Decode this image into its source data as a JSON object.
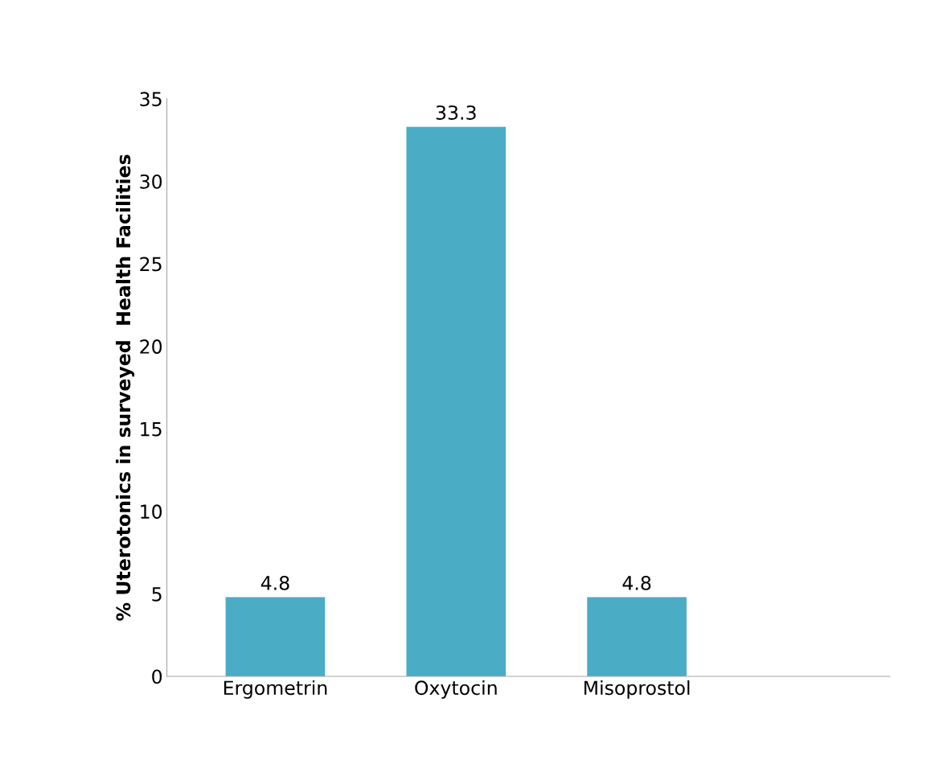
{
  "chart_data": {
    "type": "bar",
    "ylabel": "% Uterotonics in surveyed  Health Facilities",
    "categories": [
      "Ergometrin",
      "Oxytocin",
      "Misoprostol"
    ],
    "values": [
      4.8,
      33.3,
      4.8
    ],
    "color": "#4bacc6",
    "ylim": [
      0,
      35
    ],
    "yticks": [
      0,
      5,
      10,
      15,
      20,
      25,
      30,
      35
    ],
    "grid": false,
    "data_labels": true
  }
}
